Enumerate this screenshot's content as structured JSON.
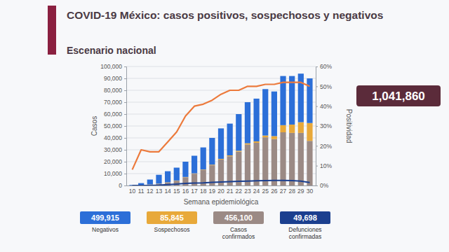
{
  "chart_data": {
    "type": "bar",
    "title": "COVID-19 México: casos positivos, sospechosos y negativos",
    "subtitle": "Escenario nacional",
    "x_label": "Semana epidemiológica",
    "y_label": "Casos",
    "y2_label": "Positividad",
    "stacked": true,
    "grid": true,
    "categories": [
      "10",
      "11",
      "12",
      "13",
      "14",
      "15",
      "16",
      "17",
      "18",
      "19",
      "20",
      "21",
      "22",
      "23",
      "24",
      "25",
      "26",
      "27",
      "28",
      "29",
      "30"
    ],
    "series": [
      {
        "name": "Negativos",
        "color": "#2c6fd8",
        "total": 499915,
        "total_label": "499,915",
        "values": [
          460,
          1600,
          4070,
          7400,
          9250,
          10800,
          12850,
          14800,
          18600,
          22500,
          25600,
          26700,
          30800,
          34500,
          35900,
          39000,
          37500,
          41300,
          40800,
          40800,
          37500
        ]
      },
      {
        "name": "Sospechosos",
        "color": "#e8a93a",
        "total": 85845,
        "total_label": "85,845",
        "values": [
          0,
          50,
          100,
          100,
          150,
          200,
          250,
          300,
          400,
          500,
          600,
          700,
          800,
          1000,
          1200,
          1500,
          2500,
          6000,
          7000,
          9000,
          15000
        ]
      },
      {
        "name": "Casos confirmados",
        "color": "#9b8a85",
        "total": 456100,
        "total_label": "456,100",
        "values": [
          40,
          350,
          830,
          1500,
          2600,
          4000,
          6900,
          9900,
          13000,
          17000,
          21800,
          24600,
          28400,
          34500,
          35900,
          40500,
          39000,
          44700,
          44200,
          44200,
          37500
        ]
      },
      {
        "name": "Defunciones confirmadas",
        "color": "#1b3f8f",
        "type": "line",
        "total": 49698,
        "total_label": "49,698",
        "values": [
          0,
          0,
          50,
          300,
          800,
          1200,
          1700,
          2000,
          2200,
          2600,
          2900,
          3200,
          3500,
          3700,
          3900,
          4100,
          4200,
          4300,
          4100,
          3700,
          2500
        ]
      },
      {
        "color": "#ec7a3c",
        "type": "line",
        "axis": "y2",
        "values": [
          8,
          18,
          17,
          17,
          22,
          27,
          35,
          40,
          41,
          43,
          46,
          48,
          48,
          50,
          50,
          51,
          51,
          52,
          52,
          52,
          50
        ]
      }
    ],
    "ylim": [
      0,
      100000
    ],
    "yticks": [
      {
        "value": 0,
        "label": "0"
      },
      {
        "value": 10000,
        "label": "10,000"
      },
      {
        "value": 20000,
        "label": "20,000"
      },
      {
        "value": 30000,
        "label": "30,000"
      },
      {
        "value": 40000,
        "label": "40,000"
      },
      {
        "value": 50000,
        "label": "50,000"
      },
      {
        "value": 60000,
        "label": "60,000"
      },
      {
        "value": 70000,
        "label": "70,000"
      },
      {
        "value": 80000,
        "label": "80,000"
      },
      {
        "value": 90000,
        "label": "90,000"
      },
      {
        "value": 100000,
        "label": "100,000"
      }
    ],
    "y2lim": [
      0,
      60
    ],
    "y2ticks": [
      {
        "value": 0,
        "label": "0%"
      },
      {
        "value": 10,
        "label": "10%"
      },
      {
        "value": 20,
        "label": "20%"
      },
      {
        "value": 30,
        "label": "30%"
      },
      {
        "value": 40,
        "label": "40%"
      },
      {
        "value": 50,
        "label": "50%"
      },
      {
        "value": 60,
        "label": "60%"
      }
    ],
    "annotations": [
      {
        "text": "1,041,860"
      }
    ]
  }
}
